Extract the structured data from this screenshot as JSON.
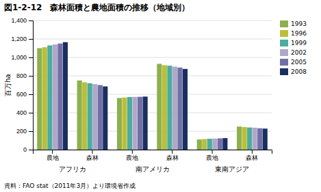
{
  "chart_data": {
    "type": "bar",
    "title": "図1-2-12　森林面積と農地面積の推移（地域別）",
    "ylabel": "百万ha",
    "footnote": "資料：FAO stat（2011年3月）より環境省作成",
    "categories": [
      "農地",
      "森林",
      "農地",
      "森林",
      "農地",
      "森林"
    ],
    "annotations": [
      "アフリカ",
      "南アメリカ",
      "東南アジア"
    ],
    "series": [
      {
        "name": "1993",
        "color": "#8db04e",
        "values": [
          1100,
          750,
          560,
          930,
          110,
          250
        ]
      },
      {
        "name": "1996",
        "color": "#bbbe3a",
        "values": [
          1110,
          730,
          565,
          915,
          115,
          245
        ]
      },
      {
        "name": "1999",
        "color": "#4aada0",
        "values": [
          1130,
          720,
          570,
          910,
          118,
          240
        ]
      },
      {
        "name": "2002",
        "color": "#b0a8c8",
        "values": [
          1140,
          710,
          572,
          900,
          120,
          238
        ]
      },
      {
        "name": "2005",
        "color": "#7070a8",
        "values": [
          1150,
          700,
          573,
          890,
          122,
          232
        ]
      },
      {
        "name": "2008",
        "color": "#1a2f60",
        "values": [
          1165,
          685,
          575,
          875,
          125,
          228
        ]
      }
    ],
    "ylim": [
      0,
      1400
    ],
    "yticks": [
      0,
      200,
      400,
      600,
      800,
      {
        "value": 1000,
        "label": "1,000"
      },
      {
        "value": 1200,
        "label": "1,200"
      },
      {
        "value": 1400,
        "label": "1,400"
      }
    ],
    "grid": true,
    "legend": "upper right"
  }
}
